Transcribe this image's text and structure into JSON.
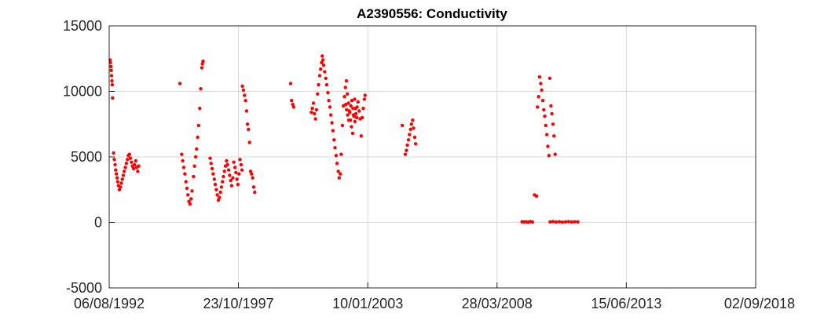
{
  "chart_data": {
    "type": "scatter",
    "title": "A2390556: Conductivity",
    "xlabel": "",
    "ylabel": "",
    "xlim": [
      "1992-08-06",
      "2018-09-02"
    ],
    "ylim": [
      -5000,
      15000
    ],
    "xticks": [
      "06/08/1992",
      "23/10/1997",
      "10/01/2003",
      "28/03/2008",
      "15/06/2013",
      "02/09/2018"
    ],
    "yticks": [
      "-5000",
      "0",
      "5000",
      "10000",
      "15000"
    ],
    "grid": true,
    "marker_color": "#ff0000",
    "series": [
      {
        "points": [
          [
            "1992-08-20",
            12400
          ],
          [
            "1992-08-25",
            12200
          ],
          [
            "1992-09-01",
            11900
          ],
          [
            "1992-09-05",
            11600
          ],
          [
            "1992-09-10",
            11200
          ],
          [
            "1992-09-15",
            10800
          ],
          [
            "1992-09-20",
            10500
          ],
          [
            "1992-09-25",
            9500
          ],
          [
            "1992-10-10",
            5300
          ],
          [
            "1992-10-20",
            4800
          ],
          [
            "1992-11-01",
            4400
          ],
          [
            "1992-11-10",
            4000
          ],
          [
            "1992-11-20",
            3700
          ],
          [
            "1992-12-01",
            3400
          ],
          [
            "1992-12-10",
            3100
          ],
          [
            "1992-12-20",
            2800
          ],
          [
            "1993-01-05",
            2500
          ],
          [
            "1993-01-20",
            2700
          ],
          [
            "1993-02-01",
            3000
          ],
          [
            "1993-02-15",
            3300
          ],
          [
            "1993-03-01",
            3600
          ],
          [
            "1993-03-15",
            3900
          ],
          [
            "1993-04-01",
            4200
          ],
          [
            "1993-04-15",
            4500
          ],
          [
            "1993-05-01",
            4800
          ],
          [
            "1993-05-15",
            5100
          ],
          [
            "1993-06-01",
            5200
          ],
          [
            "1993-06-15",
            4900
          ],
          [
            "1993-07-01",
            4600
          ],
          [
            "1993-07-15",
            4300
          ],
          [
            "1993-08-01",
            4100
          ],
          [
            "1993-08-15",
            4400
          ],
          [
            "1993-09-01",
            4700
          ],
          [
            "1993-09-15",
            4200
          ],
          [
            "1993-10-01",
            3900
          ],
          [
            "1993-10-15",
            4300
          ],
          [
            "1995-06-15",
            10600
          ],
          [
            "1995-07-10",
            5200
          ],
          [
            "1995-07-25",
            4700
          ],
          [
            "1995-08-10",
            4200
          ],
          [
            "1995-08-25",
            3700
          ],
          [
            "1995-09-10",
            3100
          ],
          [
            "1995-09-25",
            2600
          ],
          [
            "1995-10-10",
            2100
          ],
          [
            "1995-10-25",
            1600
          ],
          [
            "1995-11-10",
            1400
          ],
          [
            "1995-11-25",
            1800
          ],
          [
            "1995-12-10",
            2400
          ],
          [
            "1996-01-01",
            3500
          ],
          [
            "1996-01-15",
            4300
          ],
          [
            "1996-02-01",
            5000
          ],
          [
            "1996-02-15",
            5600
          ],
          [
            "1996-03-01",
            6500
          ],
          [
            "1996-03-15",
            7400
          ],
          [
            "1996-04-01",
            8700
          ],
          [
            "1996-04-15",
            10200
          ],
          [
            "1996-05-01",
            11800
          ],
          [
            "1996-05-10",
            12100
          ],
          [
            "1996-05-20",
            12300
          ],
          [
            "1996-09-01",
            4900
          ],
          [
            "1996-09-15",
            4500
          ],
          [
            "1996-10-01",
            4100
          ],
          [
            "1996-10-15",
            3700
          ],
          [
            "1996-11-01",
            3300
          ],
          [
            "1996-11-15",
            2900
          ],
          [
            "1996-12-01",
            2500
          ],
          [
            "1996-12-15",
            2100
          ],
          [
            "1997-01-01",
            1700
          ],
          [
            "1997-01-15",
            1900
          ],
          [
            "1997-02-01",
            2300
          ],
          [
            "1997-02-15",
            2700
          ],
          [
            "1997-03-01",
            3100
          ],
          [
            "1997-03-15",
            3500
          ],
          [
            "1997-04-01",
            3900
          ],
          [
            "1997-04-15",
            4300
          ],
          [
            "1997-05-01",
            4700
          ],
          [
            "1997-05-15",
            4400
          ],
          [
            "1997-06-01",
            4000
          ],
          [
            "1997-06-15",
            3600
          ],
          [
            "1997-07-01",
            3200
          ],
          [
            "1997-07-15",
            2800
          ],
          [
            "1997-08-01",
            3400
          ],
          [
            "1997-08-15",
            4600
          ],
          [
            "1997-09-01",
            4200
          ],
          [
            "1997-09-15",
            3800
          ],
          [
            "1997-10-01",
            3300
          ],
          [
            "1997-10-15",
            2900
          ],
          [
            "1997-11-01",
            3700
          ],
          [
            "1997-11-15",
            4800
          ],
          [
            "1997-12-01",
            4400
          ],
          [
            "1997-12-15",
            4000
          ],
          [
            "1997-12-20",
            10400
          ],
          [
            "1998-01-05",
            10100
          ],
          [
            "1998-01-20",
            9700
          ],
          [
            "1998-02-05",
            9300
          ],
          [
            "1998-02-20",
            8500
          ],
          [
            "1998-03-05",
            7500
          ],
          [
            "1998-03-20",
            7100
          ],
          [
            "1998-04-05",
            6100
          ],
          [
            "1998-04-20",
            3900
          ],
          [
            "1998-05-05",
            3700
          ],
          [
            "1998-05-20",
            3400
          ],
          [
            "1998-06-05",
            2700
          ],
          [
            "1998-06-20",
            2300
          ],
          [
            "1999-12-01",
            10600
          ],
          [
            "1999-12-15",
            9300
          ],
          [
            "2000-01-01",
            9000
          ],
          [
            "2000-01-15",
            8800
          ],
          [
            "2000-10-01",
            8400
          ],
          [
            "2000-10-15",
            8700
          ],
          [
            "2000-11-01",
            9100
          ],
          [
            "2000-11-15",
            8300
          ],
          [
            "2000-12-01",
            7900
          ],
          [
            "2000-12-15",
            8600
          ],
          [
            "2001-01-01",
            9800
          ],
          [
            "2001-01-15",
            10500
          ],
          [
            "2001-02-01",
            11200
          ],
          [
            "2001-02-15",
            11700
          ],
          [
            "2001-03-01",
            12200
          ],
          [
            "2001-03-10",
            12700
          ],
          [
            "2001-03-20",
            12400
          ],
          [
            "2001-04-01",
            12000
          ],
          [
            "2001-04-15",
            11500
          ],
          [
            "2001-05-01",
            11000
          ],
          [
            "2001-05-15",
            10500
          ],
          [
            "2001-06-01",
            9900
          ],
          [
            "2001-06-15",
            9300
          ],
          [
            "2001-07-01",
            8800
          ],
          [
            "2001-07-15",
            8200
          ],
          [
            "2001-08-01",
            7600
          ],
          [
            "2001-08-15",
            7000
          ],
          [
            "2001-09-01",
            6300
          ],
          [
            "2001-09-15",
            5700
          ],
          [
            "2001-10-01",
            5100
          ],
          [
            "2001-10-15",
            4500
          ],
          [
            "2001-11-01",
            3900
          ],
          [
            "2001-11-15",
            3400
          ],
          [
            "2001-12-01",
            3700
          ],
          [
            "2001-12-15",
            5200
          ],
          [
            "2002-01-01",
            7400
          ],
          [
            "2002-01-15",
            8900
          ],
          [
            "2002-02-01",
            9600
          ],
          [
            "2002-02-15",
            10300
          ],
          [
            "2002-03-01",
            10800
          ],
          [
            "2002-03-15",
            9800
          ],
          [
            "2002-04-01",
            9100
          ],
          [
            "2002-04-15",
            8500
          ],
          [
            "2002-05-01",
            7800
          ],
          [
            "2002-05-15",
            7300
          ],
          [
            "2002-06-01",
            6800
          ],
          [
            "2002-06-15",
            8200
          ],
          [
            "2002-07-01",
            9400
          ],
          [
            "2002-07-15",
            8700
          ],
          [
            "2002-08-01",
            8000
          ],
          [
            "2002-02-20",
            9000
          ],
          [
            "2002-03-05",
            8600
          ],
          [
            "2002-03-20",
            8200
          ],
          [
            "2002-04-05",
            7800
          ],
          [
            "2002-04-20",
            8400
          ],
          [
            "2002-05-05",
            8900
          ],
          [
            "2002-05-20",
            9300
          ],
          [
            "2002-06-05",
            8700
          ],
          [
            "2002-06-20",
            8100
          ],
          [
            "2002-07-05",
            7700
          ],
          [
            "2002-07-20",
            8300
          ],
          [
            "2002-08-05",
            8800
          ],
          [
            "2002-08-20",
            9200
          ],
          [
            "2002-09-05",
            8500
          ],
          [
            "2002-09-20",
            7900
          ],
          [
            "2002-10-05",
            6600
          ],
          [
            "2002-10-20",
            8000
          ],
          [
            "2002-11-05",
            8700
          ],
          [
            "2002-11-20",
            9400
          ],
          [
            "2002-12-01",
            9700
          ],
          [
            "2004-06-01",
            7400
          ],
          [
            "2004-07-15",
            5200
          ],
          [
            "2004-08-01",
            5500
          ],
          [
            "2004-08-15",
            5900
          ],
          [
            "2004-09-01",
            6300
          ],
          [
            "2004-09-15",
            6700
          ],
          [
            "2004-10-01",
            7100
          ],
          [
            "2004-10-15",
            7500
          ],
          [
            "2004-11-01",
            7800
          ],
          [
            "2004-11-15",
            7200
          ],
          [
            "2004-12-01",
            6500
          ],
          [
            "2004-12-15",
            6000
          ],
          [
            "2009-04-01",
            50
          ],
          [
            "2009-05-01",
            30
          ],
          [
            "2009-06-01",
            40
          ],
          [
            "2009-07-01",
            20
          ],
          [
            "2009-08-01",
            60
          ],
          [
            "2009-09-01",
            30
          ],
          [
            "2009-10-01",
            2100
          ],
          [
            "2009-11-01",
            2000
          ],
          [
            "2009-11-15",
            8800
          ],
          [
            "2009-12-01",
            9600
          ],
          [
            "2009-12-15",
            11100
          ],
          [
            "2010-01-01",
            10600
          ],
          [
            "2010-01-15",
            10100
          ],
          [
            "2010-02-01",
            9300
          ],
          [
            "2010-02-15",
            8600
          ],
          [
            "2010-03-01",
            8100
          ],
          [
            "2010-03-15",
            7400
          ],
          [
            "2010-04-01",
            6700
          ],
          [
            "2010-04-15",
            5800
          ],
          [
            "2010-05-01",
            5100
          ],
          [
            "2010-05-15",
            11000
          ],
          [
            "2010-06-01",
            8900
          ],
          [
            "2010-06-15",
            8300
          ],
          [
            "2010-07-01",
            7500
          ],
          [
            "2010-07-15",
            6600
          ],
          [
            "2010-08-01",
            5200
          ],
          [
            "2010-05-20",
            40
          ],
          [
            "2010-07-01",
            60
          ],
          [
            "2010-08-15",
            30
          ],
          [
            "2010-10-01",
            50
          ],
          [
            "2010-11-15",
            20
          ],
          [
            "2011-01-01",
            40
          ],
          [
            "2011-02-15",
            60
          ],
          [
            "2011-04-01",
            30
          ],
          [
            "2011-05-15",
            50
          ],
          [
            "2011-07-01",
            40
          ]
        ]
      }
    ]
  }
}
